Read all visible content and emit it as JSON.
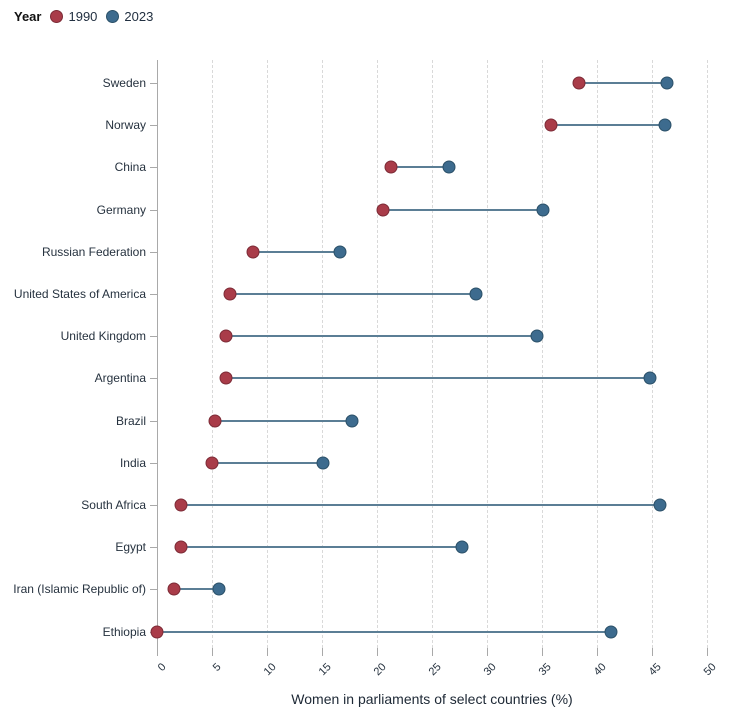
{
  "chart_data": {
    "type": "scatter",
    "variant": "dumbbell",
    "legend_title": "Year",
    "legend_position": "top-left",
    "xlabel": "Women in parliaments of select countries (%)",
    "ylabel": "",
    "xlim": [
      0,
      50
    ],
    "xticks": [
      0,
      5,
      10,
      15,
      20,
      25,
      30,
      35,
      40,
      45,
      50
    ],
    "grid": "vertical-dashed",
    "categories": [
      "Sweden",
      "Norway",
      "China",
      "Germany",
      "Russian Federation",
      "United States of America",
      "United Kingdom",
      "Argentina",
      "Brazil",
      "India",
      "South Africa",
      "Egypt",
      "Iran (Islamic Republic of)",
      "Ethiopia"
    ],
    "series": [
      {
        "name": "1990",
        "color": "#a93c49",
        "border_color": "#7c2b36",
        "values": [
          38.4,
          35.8,
          21.3,
          20.5,
          8.7,
          6.6,
          6.3,
          6.3,
          5.3,
          5.0,
          2.2,
          2.2,
          1.5,
          0.0
        ]
      },
      {
        "name": "2023",
        "color": "#3d6b8e",
        "border_color": "#2b5068",
        "values": [
          46.4,
          46.2,
          26.5,
          35.1,
          16.6,
          29.0,
          34.5,
          44.8,
          17.7,
          15.1,
          45.7,
          27.7,
          5.6,
          41.3
        ]
      }
    ],
    "connector_color": "#5b7e95",
    "gridline_color": "#d9d9d9",
    "axis_color": "#a9a9a9",
    "label_color": "#26323f"
  }
}
